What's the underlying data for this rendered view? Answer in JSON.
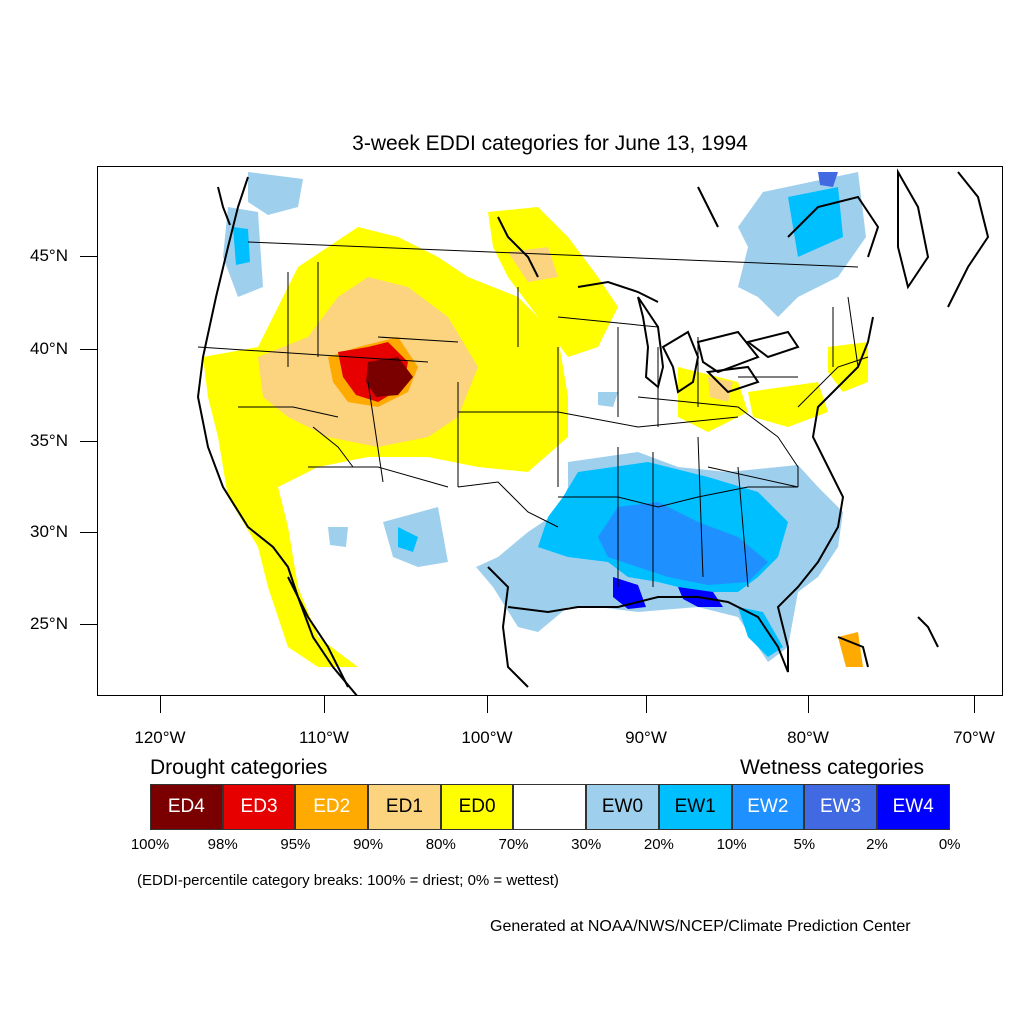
{
  "title": "3-week EDDI categories for June 13, 1994",
  "lat_labels": [
    "45°N",
    "40°N",
    "35°N",
    "30°N",
    "25°N"
  ],
  "lon_labels": [
    "120°W",
    "110°W",
    "100°W",
    "90°W",
    "80°W",
    "70°W"
  ],
  "legend": {
    "drought_heading": "Drought categories",
    "wetness_heading": "Wetness categories",
    "categories": [
      {
        "label": "ED4",
        "color": "#7a0000",
        "text_color": "#ffffff"
      },
      {
        "label": "ED3",
        "color": "#e60000",
        "text_color": "#ffffff"
      },
      {
        "label": "ED2",
        "color": "#ffaa00",
        "text_color": "#ffffff"
      },
      {
        "label": "ED1",
        "color": "#fcd37f",
        "text_color": "#000000"
      },
      {
        "label": "ED0",
        "color": "#ffff00",
        "text_color": "#000000"
      },
      {
        "label": "",
        "color": "#ffffff",
        "text_color": "#000000"
      },
      {
        "label": "EW0",
        "color": "#9ed0ee",
        "text_color": "#000000"
      },
      {
        "label": "EW1",
        "color": "#00bfff",
        "text_color": "#000000"
      },
      {
        "label": "EW2",
        "color": "#1e90ff",
        "text_color": "#ffffff"
      },
      {
        "label": "EW3",
        "color": "#4169e1",
        "text_color": "#ffffff"
      },
      {
        "label": "EW4",
        "color": "#0000ff",
        "text_color": "#ffffff"
      }
    ],
    "percentiles": [
      "100%",
      "98%",
      "95%",
      "90%",
      "80%",
      "70%",
      "30%",
      "20%",
      "10%",
      "5%",
      "2%",
      "0%"
    ]
  },
  "note": "(EDDI-percentile category breaks: 100% = driest; 0% = wettest)",
  "credit": "Generated at NOAA/NWS/NCEP/Climate Prediction Center"
}
